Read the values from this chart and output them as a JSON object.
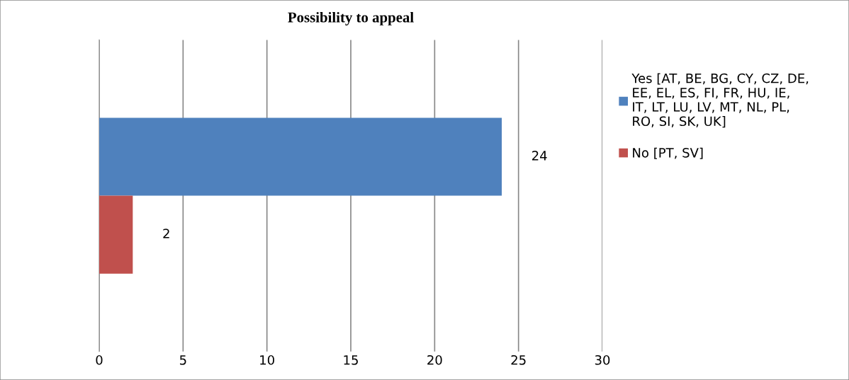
{
  "chart_data": {
    "type": "bar",
    "orientation": "horizontal",
    "title": "Possibility to appeal",
    "categories": [
      null
    ],
    "series": [
      {
        "name": "Yes [AT, BE, BG, CY, CZ, DE, EE, EL, ES, FI, FR, HU, IE, IT, LT, LU, LV, MT, NL, PL, RO, SI, SK, UK]",
        "color": "#4f81bd",
        "values": [
          24
        ]
      },
      {
        "name": "No [PT, SV]",
        "color": "#c0504d",
        "values": [
          2
        ]
      }
    ],
    "xlim": [
      0,
      30
    ],
    "xticks": [
      0,
      5,
      10,
      15,
      20,
      25,
      30
    ],
    "grid": "x",
    "legend": "right",
    "data_labels": true
  }
}
